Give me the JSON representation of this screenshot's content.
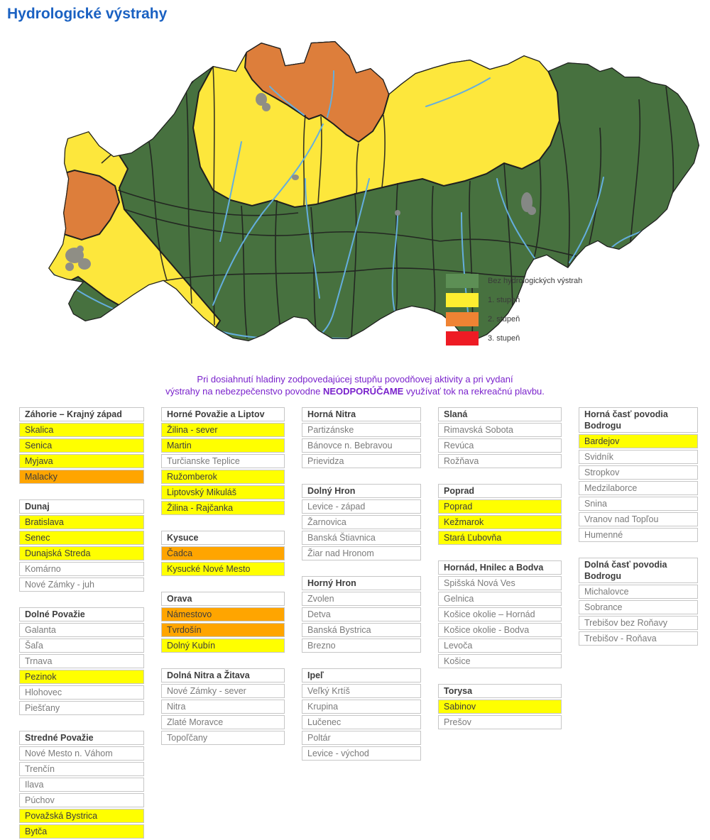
{
  "page": {
    "title": "Hydrologické výstrahy"
  },
  "legend": {
    "items": [
      {
        "label": "Bez hydrologických výstrah",
        "color": "#5d8f55"
      },
      {
        "label": "1. stupeň",
        "color": "#fdee30"
      },
      {
        "label": "2. stupeň",
        "color": "#ef8333"
      },
      {
        "label": "3. stupeň",
        "color": "#ee1b24"
      }
    ]
  },
  "map_colors": {
    "green": "#47713f",
    "yellow": "#fde73c",
    "orange": "#dd7e3b",
    "river": "#64aede",
    "urban": "#8a8a8a",
    "border": "#1f1f1f"
  },
  "level_colors": {
    "1": "#ffff00",
    "2": "#ffa500"
  },
  "level_text_color": "#3c3c3c",
  "notice": {
    "line1": "Pri dosiahnutí hladiny zodpovedajúcej stupňu povodňovej aktivity a pri vydaní",
    "line2_pre": "výstrahy na nebezpečenstvo povodne ",
    "line2_bold": "NEODPORÚČAME",
    "line2_post": " využívať tok na rekreačnú plavbu."
  },
  "columns": [
    {
      "tables": [
        {
          "title": "Záhorie – Krajný západ",
          "rows": [
            {
              "name": "Skalica",
              "level": 1
            },
            {
              "name": "Senica",
              "level": 1
            },
            {
              "name": "Myjava",
              "level": 1
            },
            {
              "name": "Malacky",
              "level": 2
            }
          ]
        },
        {
          "title": "Dunaj",
          "rows": [
            {
              "name": "Bratislava",
              "level": 1
            },
            {
              "name": "Senec",
              "level": 1
            },
            {
              "name": "Dunajská Streda",
              "level": 1
            },
            {
              "name": "Komárno",
              "level": 0
            },
            {
              "name": "Nové Zámky - juh",
              "level": 0
            }
          ]
        },
        {
          "title": "Dolné Považie",
          "rows": [
            {
              "name": "Galanta",
              "level": 0
            },
            {
              "name": "Šaľa",
              "level": 0
            },
            {
              "name": "Trnava",
              "level": 0
            },
            {
              "name": "Pezinok",
              "level": 1
            },
            {
              "name": "Hlohovec",
              "level": 0
            },
            {
              "name": "Piešťany",
              "level": 0
            }
          ]
        },
        {
          "title": "Stredné Považie",
          "rows": [
            {
              "name": "Nové Mesto n. Váhom",
              "level": 0
            },
            {
              "name": "Trenčín",
              "level": 0
            },
            {
              "name": "Ilava",
              "level": 0
            },
            {
              "name": "Púchov",
              "level": 0
            },
            {
              "name": "Považská Bystrica",
              "level": 1
            },
            {
              "name": "Bytča",
              "level": 1
            }
          ]
        }
      ]
    },
    {
      "tables": [
        {
          "title": "Horné Považie a Liptov",
          "rows": [
            {
              "name": "Žilina - sever",
              "level": 1
            },
            {
              "name": "Martin",
              "level": 1
            },
            {
              "name": "Turčianske Teplice",
              "level": 0
            },
            {
              "name": "Ružomberok",
              "level": 1
            },
            {
              "name": "Liptovský Mikuláš",
              "level": 1
            },
            {
              "name": "Žilina - Rajčanka",
              "level": 1
            }
          ]
        },
        {
          "title": "Kysuce",
          "rows": [
            {
              "name": "Čadca",
              "level": 2
            },
            {
              "name": "Kysucké Nové Mesto",
              "level": 1
            }
          ]
        },
        {
          "title": "Orava",
          "rows": [
            {
              "name": "Námestovo",
              "level": 2
            },
            {
              "name": "Tvrdošín",
              "level": 2
            },
            {
              "name": "Dolný Kubín",
              "level": 1
            }
          ]
        },
        {
          "title": "Dolná Nitra a Žitava",
          "rows": [
            {
              "name": "Nové Zámky - sever",
              "level": 0
            },
            {
              "name": "Nitra",
              "level": 0
            },
            {
              "name": "Zlaté Moravce",
              "level": 0
            },
            {
              "name": "Topoľčany",
              "level": 0
            }
          ]
        }
      ]
    },
    {
      "tables": [
        {
          "title": "Horná Nitra",
          "rows": [
            {
              "name": "Partizánske",
              "level": 0
            },
            {
              "name": "Bánovce n. Bebravou",
              "level": 0
            },
            {
              "name": "Prievidza",
              "level": 0
            }
          ]
        },
        {
          "title": "Dolný Hron",
          "rows": [
            {
              "name": "Levice - západ",
              "level": 0
            },
            {
              "name": "Žarnovica",
              "level": 0
            },
            {
              "name": "Banská Štiavnica",
              "level": 0
            },
            {
              "name": "Žiar nad Hronom",
              "level": 0
            }
          ]
        },
        {
          "title": "Horný Hron",
          "rows": [
            {
              "name": "Zvolen",
              "level": 0
            },
            {
              "name": "Detva",
              "level": 0
            },
            {
              "name": "Banská Bystrica",
              "level": 0
            },
            {
              "name": "Brezno",
              "level": 0
            }
          ]
        },
        {
          "title": "Ipeľ",
          "rows": [
            {
              "name": "Veľký Krtíš",
              "level": 0
            },
            {
              "name": "Krupina",
              "level": 0
            },
            {
              "name": "Lučenec",
              "level": 0
            },
            {
              "name": "Poltár",
              "level": 0
            },
            {
              "name": "Levice - východ",
              "level": 0
            }
          ]
        }
      ]
    },
    {
      "tables": [
        {
          "title": "Slaná",
          "rows": [
            {
              "name": "Rimavská Sobota",
              "level": 0
            },
            {
              "name": "Revúca",
              "level": 0
            },
            {
              "name": "Rožňava",
              "level": 0
            }
          ]
        },
        {
          "title": "Poprad",
          "rows": [
            {
              "name": "Poprad",
              "level": 1
            },
            {
              "name": "Kežmarok",
              "level": 1
            },
            {
              "name": "Stará Ľubovňa",
              "level": 1
            }
          ]
        },
        {
          "title": "Hornád, Hnilec a Bodva",
          "rows": [
            {
              "name": "Spišská Nová Ves",
              "level": 0
            },
            {
              "name": "Gelnica",
              "level": 0
            },
            {
              "name": "Košice okolie – Hornád",
              "level": 0
            },
            {
              "name": "Košice okolie - Bodva",
              "level": 0
            },
            {
              "name": "Levoča",
              "level": 0
            },
            {
              "name": "Košice",
              "level": 0
            }
          ]
        },
        {
          "title": "Torysa",
          "rows": [
            {
              "name": "Sabinov",
              "level": 1
            },
            {
              "name": "Prešov",
              "level": 0
            }
          ]
        }
      ]
    },
    {
      "tables": [
        {
          "title": "Horná časť povodia Bodrogu",
          "rows": [
            {
              "name": "Bardejov",
              "level": 1
            },
            {
              "name": "Svidník",
              "level": 0
            },
            {
              "name": "Stropkov",
              "level": 0
            },
            {
              "name": "Medzilaborce",
              "level": 0
            },
            {
              "name": "Snina",
              "level": 0
            },
            {
              "name": "Vranov nad Topľou",
              "level": 0
            },
            {
              "name": "Humenné",
              "level": 0
            }
          ]
        },
        {
          "title": "Dolná časť povodia Bodrogu",
          "rows": [
            {
              "name": "Michalovce",
              "level": 0
            },
            {
              "name": "Sobrance",
              "level": 0
            },
            {
              "name": "Trebišov bez Roňavy",
              "level": 0
            },
            {
              "name": "Trebišov - Roňava",
              "level": 0
            }
          ]
        }
      ]
    }
  ]
}
